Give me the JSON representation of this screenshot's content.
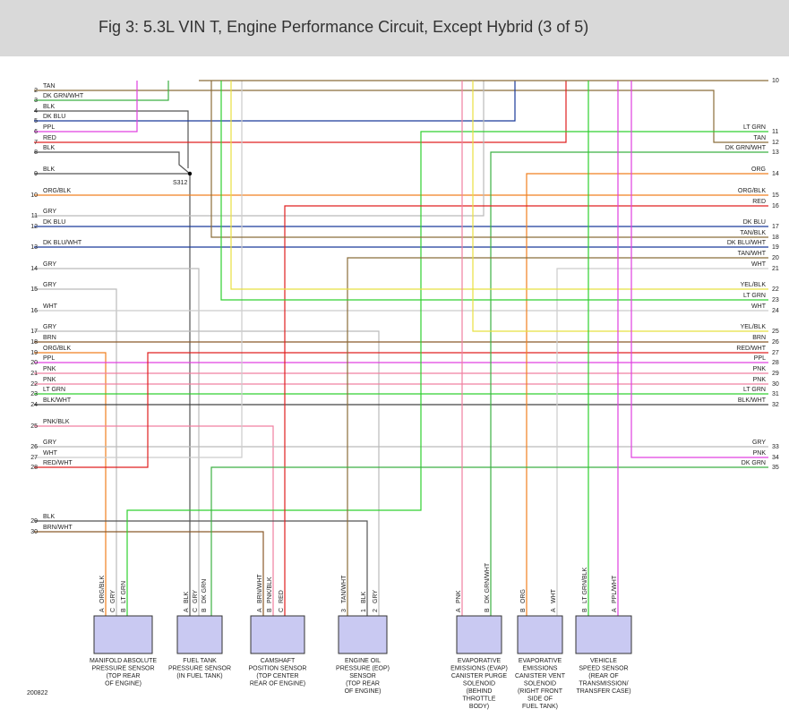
{
  "header": {
    "title": "Fig 3: 5.3L VIN T, Engine Performance Circuit, Except Hybrid (3 of 5)"
  },
  "left_wires": [
    {
      "pin": "2",
      "label": "TAN"
    },
    {
      "pin": "3",
      "label": "DK GRN/WHT"
    },
    {
      "pin": "4",
      "label": "BLK"
    },
    {
      "pin": "5",
      "label": "DK BLU"
    },
    {
      "pin": "6",
      "label": "PPL"
    },
    {
      "pin": "7",
      "label": "RED"
    },
    {
      "pin": "8",
      "label": "BLK"
    },
    {
      "pin": "9",
      "label": "BLK"
    },
    {
      "pin": "10",
      "label": "ORG/BLK"
    },
    {
      "pin": "11",
      "label": "GRY"
    },
    {
      "pin": "12",
      "label": "DK BLU"
    },
    {
      "pin": "13",
      "label": "DK BLU/WHT"
    },
    {
      "pin": "14",
      "label": "GRY"
    },
    {
      "pin": "15",
      "label": "GRY"
    },
    {
      "pin": "16",
      "label": "WHT"
    },
    {
      "pin": "17",
      "label": "GRY"
    },
    {
      "pin": "18",
      "label": "BRN"
    },
    {
      "pin": "19",
      "label": "ORG/BLK"
    },
    {
      "pin": "20",
      "label": "PPL"
    },
    {
      "pin": "21",
      "label": "PNK"
    },
    {
      "pin": "22",
      "label": "PNK"
    },
    {
      "pin": "23",
      "label": "LT GRN"
    },
    {
      "pin": "24",
      "label": "BLK/WHT"
    },
    {
      "pin": "25",
      "label": "PNK/BLK"
    },
    {
      "pin": "26",
      "label": "GRY"
    },
    {
      "pin": "27",
      "label": "WHT"
    },
    {
      "pin": "28",
      "label": "RED/WHT"
    },
    {
      "pin": "29",
      "label": "BLK"
    },
    {
      "pin": "30",
      "label": "BRN/WHT"
    }
  ],
  "right_wires": [
    {
      "pin": "10"
    },
    {
      "pin": "11",
      "label": "LT GRN"
    },
    {
      "pin": "12",
      "label": "TAN"
    },
    {
      "pin": "13",
      "label": "DK GRN/WHT"
    },
    {
      "pin": "14",
      "label": "ORG"
    },
    {
      "pin": "15",
      "label": "ORG/BLK"
    },
    {
      "pin": "16",
      "label": "RED"
    },
    {
      "pin": "17",
      "label": "DK BLU"
    },
    {
      "pin": "18",
      "label": "TAN/BLK"
    },
    {
      "pin": "19",
      "label": "DK BLU/WHT"
    },
    {
      "pin": "20",
      "label": "TAN/WHT"
    },
    {
      "pin": "21",
      "label": "WHT"
    },
    {
      "pin": "22",
      "label": "YEL/BLK"
    },
    {
      "pin": "23",
      "label": "LT GRN"
    },
    {
      "pin": "24",
      "label": "WHT"
    },
    {
      "pin": "25",
      "label": "YEL/BLK"
    },
    {
      "pin": "26",
      "label": "BRN"
    },
    {
      "pin": "27",
      "label": "RED/WHT"
    },
    {
      "pin": "28",
      "label": "PPL"
    },
    {
      "pin": "29",
      "label": "PNK"
    },
    {
      "pin": "30",
      "label": "PNK"
    },
    {
      "pin": "31",
      "label": "LT GRN"
    },
    {
      "pin": "32",
      "label": "BLK/WHT"
    },
    {
      "pin": "33",
      "label": "GRY"
    },
    {
      "pin": "34",
      "label": "PNK"
    },
    {
      "pin": "35",
      "label": "DK GRN"
    }
  ],
  "splice": "S312",
  "components": [
    {
      "name": [
        "MANIFOLD ABSOLUTE",
        "PRESSURE SENSOR",
        "(TOP REAR",
        "OF ENGINE)"
      ],
      "pins": [
        {
          "pin": "A",
          "wire": "ORG/BLK"
        },
        {
          "pin": "C",
          "wire": "GRY"
        },
        {
          "pin": "B",
          "wire": "LT GRN"
        }
      ]
    },
    {
      "name": [
        "FUEL TANK",
        "PRESSURE SENSOR",
        "(IN FUEL TANK)"
      ],
      "pins": [
        {
          "pin": "A",
          "wire": "BLK"
        },
        {
          "pin": "C",
          "wire": "GRY"
        },
        {
          "pin": "B",
          "wire": "DK GRN"
        }
      ]
    },
    {
      "name": [
        "CAMSHAFT",
        "POSITION SENSOR",
        "(TOP CENTER",
        "REAR OF ENGINE)"
      ],
      "pins": [
        {
          "pin": "A",
          "wire": "BRN/WHT"
        },
        {
          "pin": "B",
          "wire": "PNK/BLK"
        },
        {
          "pin": "C",
          "wire": "RED"
        }
      ]
    },
    {
      "name": [
        "ENGINE OIL",
        "PRESSURE (EOP)",
        "SENSOR",
        "(TOP REAR",
        "OF ENGINE)"
      ],
      "pins": [
        {
          "pin": "3",
          "wire": "TAN/WHT"
        },
        {
          "pin": "1",
          "wire": "BLK"
        },
        {
          "pin": "2",
          "wire": "GRY"
        }
      ]
    },
    {
      "name": [
        "EVAPORATIVE",
        "EMISSIONS (EVAP)",
        "CANISTER PURGE",
        "SOLENOID",
        "(BEHIND",
        "THROTTLE",
        "BODY)"
      ],
      "pins": [
        {
          "pin": "A",
          "wire": "PNK"
        },
        {
          "pin": "B",
          "wire": "DK GRN/WHT"
        }
      ]
    },
    {
      "name": [
        "EVAPORATIVE",
        "EMISSIONS",
        "CANISTER VENT",
        "SOLENOID",
        "(RIGHT FRONT",
        "SIDE OF",
        "FUEL TANK)"
      ],
      "pins": [
        {
          "pin": "B",
          "wire": "ORG"
        },
        {
          "pin": "A",
          "wire": "WHT"
        }
      ]
    },
    {
      "name": [
        "VEHICLE",
        "SPEED SENSOR",
        "(REAR OF",
        "TRANSMISSION/",
        "TRANSFER CASE)"
      ],
      "pins": [
        {
          "pin": "B",
          "wire": "LT GRN/BLK"
        },
        {
          "pin": "A",
          "wire": "PPL/WHT"
        }
      ]
    }
  ],
  "footer": "200822"
}
